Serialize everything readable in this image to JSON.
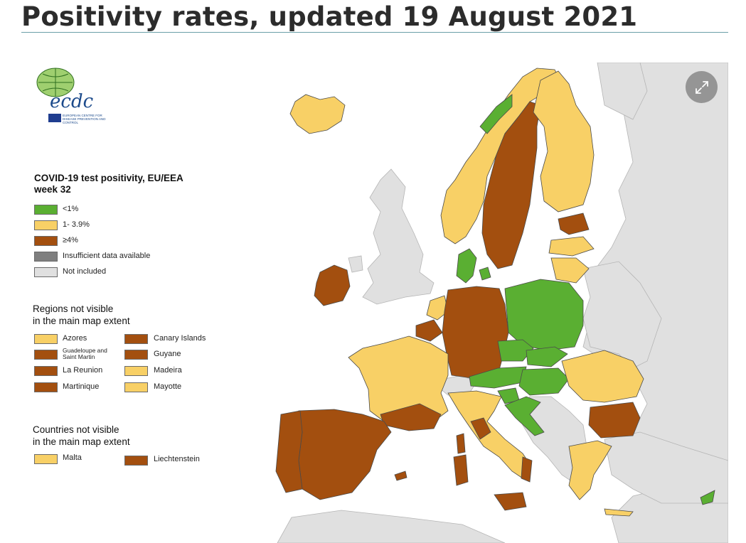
{
  "page": {
    "title": "Positivity rates, updated 19 August 2021"
  },
  "logo": {
    "wordmark": "ecdc",
    "subtitle": "EUROPEAN CENTRE FOR DISEASE PREVENTION AND CONTROL",
    "icon": "ecdc-globe-logo"
  },
  "controls": {
    "expand_icon": "expand-arrows-icon"
  },
  "legend": {
    "title_line1": "COVID-19 test positivity, EU/EEA",
    "title_line2": "week 32",
    "categories": [
      {
        "label": "<1%",
        "color": "#5aaf32"
      },
      {
        "label": "1- 3.9%",
        "color": "#f8d066"
      },
      {
        "label": "≥4%",
        "color": "#a34f0f"
      },
      {
        "label": "Insufficient data available",
        "color": "#7f7f7f"
      },
      {
        "label": "Not included",
        "color": "#e0e0e0"
      }
    ]
  },
  "regions_box": {
    "heading_line1": "Regions not visible",
    "heading_line2": "in the main map extent",
    "items": [
      {
        "label": "Azores",
        "color": "#f8d066"
      },
      {
        "label": "Canary Islands",
        "color": "#a34f0f"
      },
      {
        "label": "Guadeloupe and Saint Martin",
        "color": "#a34f0f"
      },
      {
        "label": "Guyane",
        "color": "#a34f0f"
      },
      {
        "label": "La Reunion",
        "color": "#a34f0f"
      },
      {
        "label": "Madeira",
        "color": "#f8d066"
      },
      {
        "label": "Martinique",
        "color": "#a34f0f"
      },
      {
        "label": "Mayotte",
        "color": "#f8d066"
      }
    ]
  },
  "countries_box": {
    "heading_line1": "Countries not visible",
    "heading_line2": "in the main map extent",
    "items": [
      {
        "label": "Malta",
        "color": "#f8d066"
      },
      {
        "label": "Liechtenstein",
        "color": "#a34f0f"
      }
    ]
  },
  "colors": {
    "sea": "#ffffff",
    "not_included": "#e0e0e0",
    "green": "#5aaf32",
    "yellow": "#f8d066",
    "brown": "#a34f0f",
    "border": "#4a4a4a"
  }
}
